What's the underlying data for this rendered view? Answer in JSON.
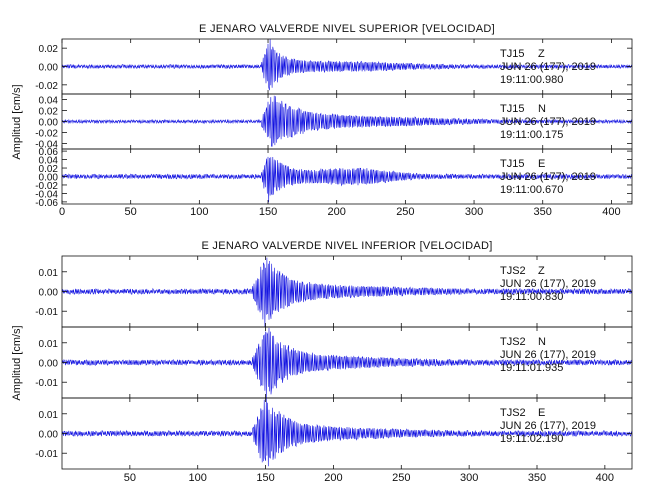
{
  "chart_data": [
    {
      "type": "line",
      "title": "E JENARO VALVERDE NIVEL SUPERIOR [VELOCIDAD]",
      "ylabel": "Amplitud [cm/s]",
      "xlim": [
        0,
        415
      ],
      "xticks": [
        0,
        50,
        100,
        150,
        200,
        250,
        300,
        350,
        400
      ],
      "line_color": "#1010e0",
      "grid": false,
      "panels": [
        {
          "station": "TJ15",
          "component": "Z",
          "date": "JUN 26 (177), 2019",
          "time": "19:11:00.980",
          "ylim": [
            -0.03,
            0.03
          ],
          "yticks": [
            "0.02",
            "0.00",
            "-0.02"
          ],
          "ytick_values": [
            0.02,
            0.0,
            -0.02
          ],
          "signal": {
            "noise": 0.0015,
            "p_onset": 145,
            "peak_time": 151,
            "peak_amp": 0.03,
            "decay": 9,
            "coda_amp": 0.004,
            "coda_center": 200,
            "coda_width": 60
          }
        },
        {
          "station": "TJ15",
          "component": "N",
          "date": "JUN 26 (177), 2019",
          "time": "19:11:00.175",
          "ylim": [
            -0.05,
            0.05
          ],
          "yticks": [
            "0.04",
            "0.02",
            "0.00",
            "-0.02",
            "-0.04"
          ],
          "ytick_values": [
            0.04,
            0.02,
            0.0,
            -0.02,
            -0.04
          ],
          "signal": {
            "noise": 0.002,
            "p_onset": 145,
            "peak_time": 153,
            "peak_amp": 0.045,
            "decay": 18,
            "coda_amp": 0.008,
            "coda_center": 200,
            "coda_width": 90
          }
        },
        {
          "station": "TJ15",
          "component": "E",
          "date": "JUN 26 (177), 2019",
          "time": "19:11:00.670",
          "ylim": [
            -0.065,
            0.065
          ],
          "yticks": [
            "0.06",
            "0.04",
            "0.02",
            "0.00",
            "-0.02",
            "-0.04",
            "-0.06"
          ],
          "ytick_values": [
            0.06,
            0.04,
            0.02,
            0.0,
            -0.02,
            -0.04,
            -0.06
          ],
          "signal": {
            "noise": 0.004,
            "p_onset": 145,
            "peak_time": 150,
            "peak_amp": 0.06,
            "decay": 12,
            "coda_amp": 0.016,
            "coda_center": 210,
            "coda_width": 35
          }
        }
      ]
    },
    {
      "type": "line",
      "title": "E JENARO VALVERDE NIVEL INFERIOR [VELOCIDAD]",
      "ylabel": "Amplitud [cm/s]",
      "xlim": [
        0,
        420
      ],
      "xticks": [
        50,
        100,
        150,
        200,
        250,
        300,
        350,
        400
      ],
      "line_color": "#1010e0",
      "grid": false,
      "panels": [
        {
          "station": "TJS2",
          "component": "Z",
          "date": "JUN 26 (177), 2019",
          "time": "19:11:00.830",
          "ylim": [
            -0.018,
            0.018
          ],
          "yticks": [
            "0.01",
            "0.00",
            "-0.01"
          ],
          "ytick_values": [
            0.01,
            0.0,
            -0.01
          ],
          "signal": {
            "noise": 0.001,
            "p_onset": 140,
            "peak_time": 150,
            "peak_amp": 0.017,
            "decay": 14,
            "coda_amp": 0.002,
            "coda_center": 190,
            "coda_width": 70
          }
        },
        {
          "station": "TJS2",
          "component": "N",
          "date": "JUN 26 (177), 2019",
          "time": "19:11:01.935",
          "ylim": [
            -0.018,
            0.018
          ],
          "yticks": [
            "0.01",
            "0.00",
            "-0.01"
          ],
          "ytick_values": [
            0.01,
            0.0,
            -0.01
          ],
          "signal": {
            "noise": 0.001,
            "p_onset": 140,
            "peak_time": 151,
            "peak_amp": 0.017,
            "decay": 16,
            "coda_amp": 0.002,
            "coda_center": 190,
            "coda_width": 70
          }
        },
        {
          "station": "TJS2",
          "component": "E",
          "date": "JUN 26 (177), 2019",
          "time": "19:11:02.190",
          "ylim": [
            -0.018,
            0.018
          ],
          "yticks": [
            "0.01",
            "0.00",
            "-0.01"
          ],
          "ytick_values": [
            0.01,
            0.0,
            -0.01
          ],
          "signal": {
            "noise": 0.001,
            "p_onset": 140,
            "peak_time": 150,
            "peak_amp": 0.017,
            "decay": 15,
            "coda_amp": 0.002,
            "coda_center": 190,
            "coda_width": 70
          }
        }
      ]
    }
  ]
}
